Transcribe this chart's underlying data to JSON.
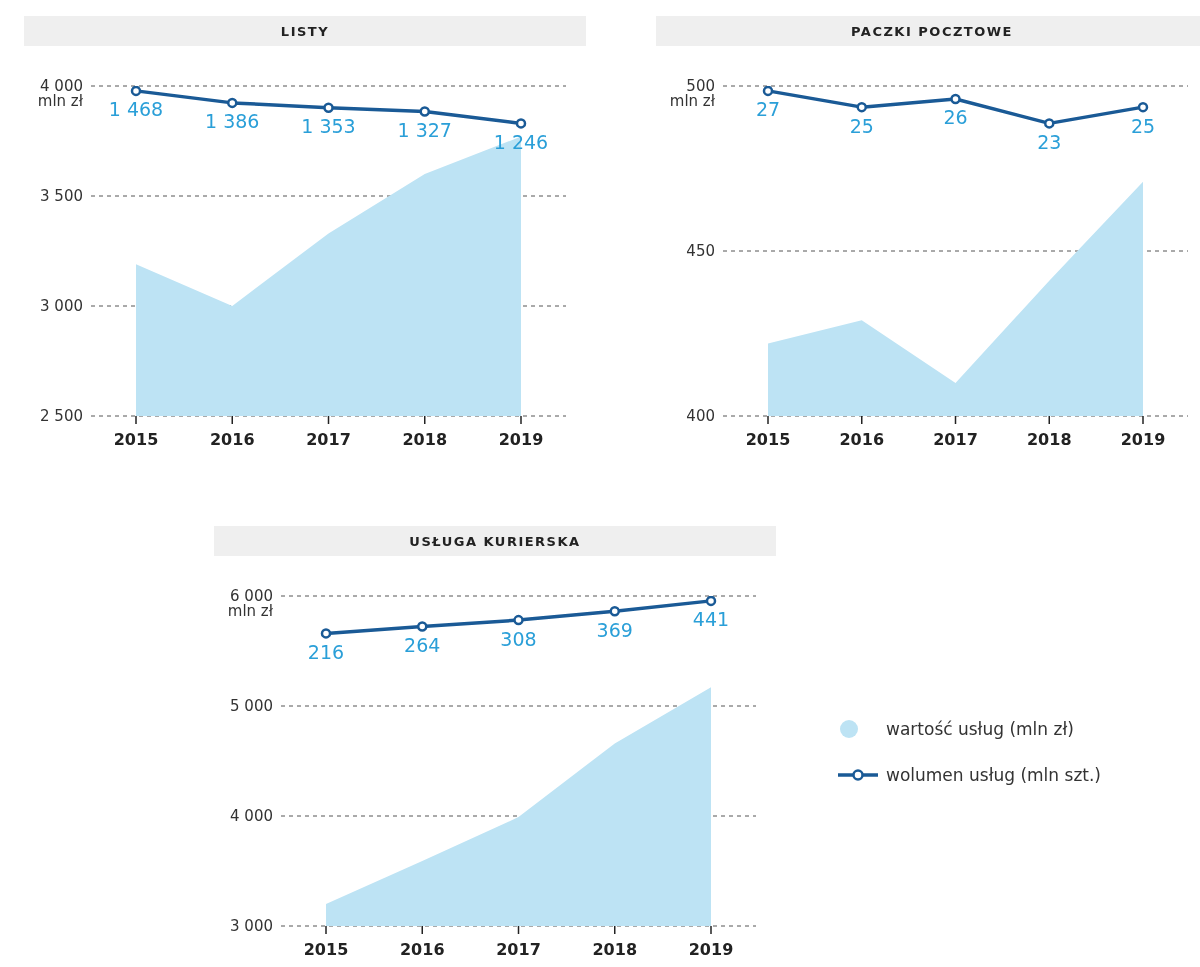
{
  "chart_data": [
    {
      "type": "area",
      "title": "LISTY",
      "ylabel": "mln zł",
      "categories": [
        "2015",
        "2016",
        "2017",
        "2018",
        "2019"
      ],
      "ylim": [
        2500,
        4000
      ],
      "yticks": [
        {
          "value": 2500,
          "label": "2 500"
        },
        {
          "value": 3000,
          "label": "3 000"
        },
        {
          "value": 3500,
          "label": "3 500"
        },
        {
          "value": 4000,
          "label": "4 000"
        }
      ],
      "grid": "y",
      "series": [
        {
          "color": "#bde3f4",
          "values": [
            3190,
            3000,
            3330,
            3600,
            3770
          ]
        },
        {
          "type": "line",
          "axis": "y2",
          "marker": "circle",
          "color": "#1a5a96",
          "values": [
            1468,
            1386,
            1353,
            1327,
            1246
          ],
          "value_labels": [
            "1 468",
            "1 386",
            "1 353",
            "1 327",
            "1 246"
          ]
        }
      ]
    },
    {
      "type": "area",
      "title": "PACZKI POCZTOWE",
      "ylabel": "mln zł",
      "categories": [
        "2015",
        "2016",
        "2017",
        "2018",
        "2019"
      ],
      "ylim": [
        400,
        500
      ],
      "yticks": [
        400,
        450,
        500
      ],
      "grid": "y",
      "series": [
        {
          "color": "#bde3f4",
          "values": [
            422,
            429,
            410,
            441,
            471
          ]
        },
        {
          "type": "line",
          "axis": "y2",
          "marker": "circle",
          "color": "#1a5a96",
          "values": [
            27,
            25,
            26,
            23,
            25
          ],
          "value_labels": [
            "27",
            "25",
            "26",
            "23",
            "25"
          ]
        }
      ]
    },
    {
      "type": "area",
      "title": "USŁUGA KURIERSKA",
      "ylabel": "mln zł",
      "categories": [
        "2015",
        "2016",
        "2017",
        "2018",
        "2019"
      ],
      "ylim": [
        3000,
        6000
      ],
      "yticks": [
        {
          "value": 3000,
          "label": "3 000"
        },
        {
          "value": 4000,
          "label": "4 000"
        },
        {
          "value": 5000,
          "label": "5 000"
        },
        {
          "value": 6000,
          "label": "6 000"
        }
      ],
      "grid": "y",
      "legend": "right",
      "series": [
        {
          "name": "wartość usług (mln zł)",
          "color": "#bde3f4",
          "values": [
            3200,
            3590,
            3990,
            4660,
            5170
          ]
        },
        {
          "type": "line",
          "axis": "y2",
          "marker": "circle",
          "name": "wolumen usług (mln szt.)",
          "color": "#1a5a96",
          "values": [
            216,
            264,
            308,
            369,
            441
          ],
          "value_labels": [
            "216",
            "264",
            "308",
            "369",
            "441"
          ]
        }
      ]
    }
  ]
}
